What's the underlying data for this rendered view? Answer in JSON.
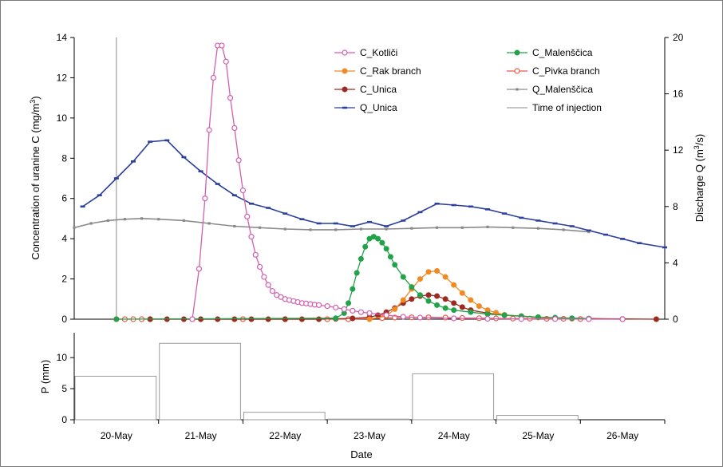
{
  "chart_data": [
    {
      "type": "line",
      "x_unit": "day",
      "x_origin_label": "20-May",
      "x_range": [
        -0.5,
        6.5
      ],
      "ylabel_main": "Concentration of uranine  C",
      "ylabel_main_unit": "(mg/m",
      "ylabel_main_unit_sup": "3",
      "ylabel_main_unit_close": ")",
      "ylim_left": [
        0,
        14
      ],
      "yticks_left": [
        0,
        2,
        4,
        6,
        8,
        10,
        12,
        14
      ],
      "ylabel_right": "Discharge  Q",
      "ylabel_right_unit": "(m",
      "ylabel_right_unit_sup": "3",
      "ylabel_right_unit_close": "/s)",
      "ylim_right": [
        0,
        20
      ],
      "yticks_right": [
        0,
        4,
        8,
        12,
        16,
        20
      ],
      "injection_time": 0.0,
      "injection_value": 14,
      "legend_placement": "top-right",
      "legend": [
        {
          "label": "C_Kotliči",
          "key": "c_kotlici"
        },
        {
          "label": "C_Malenščica",
          "key": "c_malenscica"
        },
        {
          "label": "C_Rak branch",
          "key": "c_rak"
        },
        {
          "label": "C_Pivka branch",
          "key": "c_pivka"
        },
        {
          "label": "C_Unica",
          "key": "c_unica"
        },
        {
          "label": "Q_Malenščica",
          "key": "q_malenscica"
        },
        {
          "label": "Q_Unica",
          "key": "q_unica"
        },
        {
          "label": "Time of injection",
          "key": "injection"
        }
      ],
      "series": [
        {
          "key": "c_kotlici",
          "axis": "left",
          "color": "#d25fb0",
          "marker": "open-circle",
          "x": [
            0.9,
            0.98,
            1.05,
            1.1,
            1.15,
            1.2,
            1.25,
            1.3,
            1.35,
            1.4,
            1.45,
            1.5,
            1.55,
            1.6,
            1.65,
            1.7,
            1.75,
            1.8,
            1.85,
            1.9,
            1.95,
            2.0,
            2.05,
            2.1,
            2.15,
            2.2,
            2.25,
            2.3,
            2.35,
            2.4,
            2.5,
            2.6,
            2.7,
            2.8,
            2.9,
            3.0,
            3.2,
            3.4,
            3.6,
            4.0,
            4.4,
            4.8,
            5.2,
            5.6,
            6.0
          ],
          "y": [
            0.0,
            2.5,
            6.0,
            9.4,
            12.0,
            13.6,
            13.6,
            12.8,
            11.0,
            9.5,
            7.9,
            6.4,
            5.1,
            4.1,
            3.2,
            2.6,
            2.1,
            1.7,
            1.4,
            1.2,
            1.1,
            1.0,
            0.95,
            0.9,
            0.85,
            0.8,
            0.78,
            0.75,
            0.72,
            0.7,
            0.65,
            0.58,
            0.5,
            0.42,
            0.35,
            0.3,
            0.2,
            0.12,
            0.08,
            0.04,
            0.02,
            0.01,
            0.01,
            0.0,
            0.0
          ]
        },
        {
          "key": "c_malenscica",
          "axis": "left",
          "color": "#22a24a",
          "marker": "filled-circle",
          "x": [
            0.0,
            2.6,
            2.7,
            2.75,
            2.8,
            2.85,
            2.9,
            2.95,
            3.0,
            3.05,
            3.1,
            3.15,
            3.2,
            3.25,
            3.3,
            3.4,
            3.5,
            3.6,
            3.7,
            3.8,
            3.9,
            4.0,
            4.2,
            4.4,
            4.6,
            4.8,
            5.0,
            5.2,
            5.4,
            5.6
          ],
          "y": [
            0.0,
            0.05,
            0.3,
            0.8,
            1.5,
            2.3,
            3.0,
            3.6,
            4.0,
            4.1,
            4.0,
            3.8,
            3.5,
            3.1,
            2.7,
            2.1,
            1.6,
            1.2,
            0.9,
            0.7,
            0.55,
            0.45,
            0.35,
            0.25,
            0.2,
            0.15,
            0.1,
            0.08,
            0.05,
            0.03
          ]
        },
        {
          "key": "c_rak",
          "axis": "left",
          "color": "#f08a24",
          "marker": "filled-circle",
          "x": [
            3.0,
            3.2,
            3.3,
            3.4,
            3.5,
            3.6,
            3.7,
            3.8,
            3.9,
            4.0,
            4.1,
            4.2,
            4.3,
            4.4,
            4.5,
            4.6,
            4.8,
            5.0,
            5.2,
            5.4
          ],
          "y": [
            0.0,
            0.15,
            0.5,
            0.95,
            1.5,
            2.0,
            2.35,
            2.4,
            2.1,
            1.7,
            1.3,
            0.95,
            0.65,
            0.45,
            0.32,
            0.22,
            0.15,
            0.08,
            0.05,
            0.02
          ]
        },
        {
          "key": "c_pivka",
          "axis": "left",
          "color": "#e85a4a",
          "marker": "open-circle",
          "x": [
            0.0,
            0.1,
            0.2,
            0.3,
            0.4,
            0.9,
            1.5,
            2.0,
            2.5,
            2.75,
            3.0,
            3.15,
            3.3,
            3.5,
            3.7,
            3.9,
            4.1,
            4.3,
            4.5,
            4.7,
            4.9,
            5.1,
            5.3,
            5.5,
            6.0
          ],
          "y": [
            0.0,
            0.0,
            0.0,
            0.0,
            0.0,
            0.0,
            0.0,
            0.0,
            0.0,
            0.0,
            0.03,
            0.05,
            0.08,
            0.09,
            0.09,
            0.08,
            0.06,
            0.05,
            0.04,
            0.03,
            0.03,
            0.02,
            0.02,
            0.01,
            0.0
          ]
        },
        {
          "key": "c_unica",
          "axis": "left",
          "color": "#9c2a20",
          "marker": "filled-circle",
          "x": [
            0.4,
            0.6,
            0.8,
            1.0,
            1.2,
            1.4,
            1.6,
            1.8,
            2.0,
            2.2,
            2.4,
            2.6,
            2.8,
            3.0,
            3.1,
            3.2,
            3.3,
            3.4,
            3.5,
            3.6,
            3.7,
            3.8,
            3.9,
            4.0,
            4.1,
            4.2,
            4.4,
            4.6,
            4.8,
            5.0,
            5.2,
            5.6,
            6.0,
            6.4
          ],
          "y": [
            0.0,
            0.0,
            0.0,
            0.0,
            0.0,
            0.0,
            0.0,
            0.0,
            0.0,
            0.0,
            0.0,
            0.02,
            0.04,
            0.1,
            0.2,
            0.35,
            0.55,
            0.8,
            1.0,
            1.15,
            1.2,
            1.15,
            1.0,
            0.8,
            0.6,
            0.45,
            0.3,
            0.2,
            0.15,
            0.1,
            0.06,
            0.03,
            0.01,
            0.0
          ]
        },
        {
          "key": "q_malenscica",
          "axis": "right",
          "color": "#8a8a8a",
          "marker": "small-square",
          "x": [
            -0.5,
            -0.3,
            -0.1,
            0.1,
            0.3,
            0.5,
            0.8,
            1.1,
            1.4,
            1.7,
            2.0,
            2.3,
            2.6,
            2.9,
            3.2,
            3.5,
            3.8,
            4.1,
            4.4,
            4.7,
            5.0,
            5.3,
            5.6
          ],
          "y": [
            6.5,
            6.8,
            7.0,
            7.1,
            7.15,
            7.1,
            7.0,
            6.8,
            6.6,
            6.5,
            6.4,
            6.35,
            6.35,
            6.4,
            6.4,
            6.45,
            6.5,
            6.5,
            6.55,
            6.5,
            6.45,
            6.35,
            6.2
          ]
        },
        {
          "key": "q_unica",
          "axis": "right",
          "color": "#2c3f9c",
          "marker": "dash",
          "x": [
            -0.4,
            -0.2,
            0.0,
            0.2,
            0.4,
            0.6,
            0.8,
            1.0,
            1.2,
            1.4,
            1.6,
            1.8,
            2.0,
            2.2,
            2.4,
            2.6,
            2.8,
            3.0,
            3.2,
            3.4,
            3.6,
            3.8,
            4.0,
            4.2,
            4.4,
            4.6,
            4.8,
            5.0,
            5.2,
            5.4,
            5.6,
            5.8,
            6.0,
            6.2,
            6.5
          ],
          "y": [
            8.0,
            8.8,
            10.0,
            11.2,
            12.6,
            12.7,
            11.5,
            10.5,
            9.6,
            8.8,
            8.2,
            7.9,
            7.5,
            7.1,
            6.8,
            6.8,
            6.6,
            6.9,
            6.6,
            7.0,
            7.6,
            8.2,
            8.1,
            8.0,
            7.8,
            7.5,
            7.2,
            7.0,
            6.8,
            6.6,
            6.3,
            6.0,
            5.7,
            5.4,
            5.1
          ]
        }
      ]
    },
    {
      "type": "bar",
      "categories": [
        "20-May",
        "21-May",
        "22-May",
        "23-May",
        "24-May",
        "25-May",
        "26-May"
      ],
      "values": [
        7.0,
        12.3,
        1.2,
        0.1,
        7.4,
        0.7,
        0.0
      ],
      "ylabel": "P",
      "ylabel_unit": "(mm)",
      "xlabel": "Date",
      "ylim": [
        0,
        14
      ],
      "yticks": [
        0,
        5,
        10
      ],
      "bar_fill": "#ffffff",
      "bar_edge": "#9a9a9a"
    }
  ]
}
